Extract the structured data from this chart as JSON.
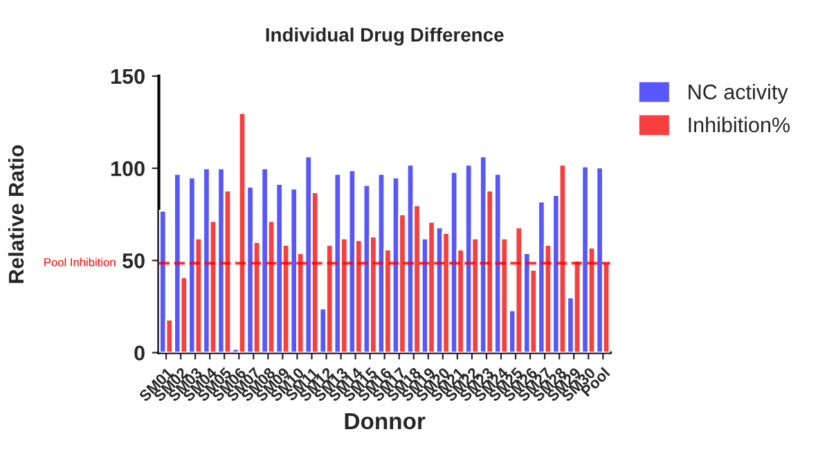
{
  "chart_data": {
    "type": "bar",
    "title": "Individual Drug Difference",
    "xlabel": "Donnor",
    "ylabel": "Relative Ratio",
    "categories": [
      "SM01",
      "SM02",
      "SM03",
      "SM04",
      "SM05",
      "SM06",
      "SM07",
      "SM08",
      "SM09",
      "SM10",
      "SM11",
      "SM12",
      "SM13",
      "SM14",
      "SM15",
      "SM16",
      "SM17",
      "SM18",
      "SM19",
      "SM20",
      "SM21",
      "SM22",
      "SM23",
      "SM24",
      "SM25",
      "SM26",
      "SM27",
      "SM28",
      "SM29",
      "SM30",
      "Pool"
    ],
    "series": [
      {
        "name": "NC activity",
        "color": "#5757fb",
        "values": [
          77,
          97,
          95,
          100,
          100,
          2,
          90,
          100,
          91.5,
          89,
          106.5,
          24,
          97,
          99,
          91,
          97,
          95,
          102,
          62,
          68,
          98,
          102,
          106.5,
          97,
          23,
          54,
          82,
          85.5,
          30,
          101,
          100.5
        ]
      },
      {
        "name": "Inhibition%",
        "color": "#f93e3e",
        "values": [
          18,
          41,
          62,
          71.5,
          88,
          130,
          60,
          71.5,
          58.5,
          54,
          87,
          58.5,
          62,
          61,
          63,
          56,
          75,
          80,
          71,
          65,
          56,
          62,
          88,
          62,
          68,
          45,
          58.5,
          102,
          50,
          57,
          49
        ]
      }
    ],
    "ylim": [
      0,
      150
    ],
    "yticks": [
      0,
      50,
      100,
      150
    ],
    "ref_lines": [
      {
        "axis": "y",
        "value": 48.5,
        "label": "Pool Inhibition",
        "color": "#ff0000",
        "line_style": "dashed"
      }
    ],
    "legend": "top right",
    "grid": false
  }
}
